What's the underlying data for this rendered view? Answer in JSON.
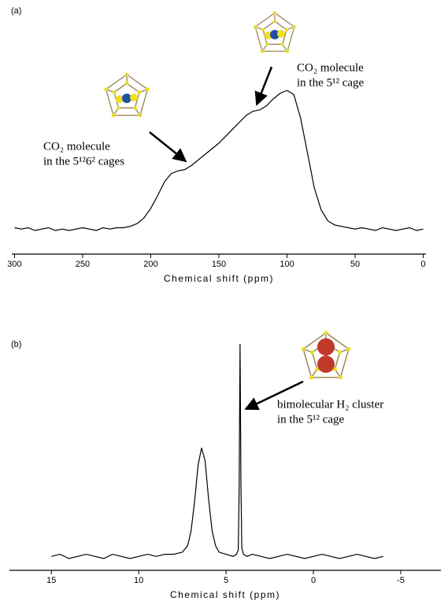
{
  "chart_data": [
    {
      "type": "line",
      "panel_label": "(a)",
      "xlabel": "Chemical shift (ppm)",
      "color": "#000000",
      "xlim": [
        302,
        -2
      ],
      "xticks": [
        300,
        250,
        200,
        150,
        100,
        50,
        0
      ],
      "x": [
        300,
        295,
        290,
        285,
        280,
        275,
        270,
        265,
        260,
        255,
        250,
        245,
        240,
        235,
        230,
        225,
        220,
        215,
        210,
        205,
        200,
        195,
        190,
        185,
        180,
        175,
        170,
        165,
        160,
        155,
        150,
        145,
        140,
        135,
        130,
        125,
        120,
        115,
        110,
        105,
        100,
        95,
        90,
        85,
        80,
        75,
        70,
        65,
        60,
        55,
        50,
        45,
        40,
        35,
        30,
        25,
        20,
        15,
        10,
        5,
        0
      ],
      "values": [
        1,
        0,
        1,
        -1,
        0,
        1,
        -1,
        0,
        -1,
        0,
        1,
        0,
        -1,
        1,
        0,
        1,
        1,
        2,
        4,
        8,
        15,
        24,
        34,
        40,
        42,
        43,
        46,
        50,
        54,
        58,
        62,
        67,
        72,
        77,
        82,
        85,
        86,
        89,
        94,
        98,
        100,
        97,
        80,
        55,
        30,
        14,
        6,
        3,
        2,
        1,
        0,
        1,
        0,
        -1,
        1,
        0,
        -1,
        0,
        1,
        -1,
        0
      ],
      "annotations": [
        [
          "CO₂ molecule",
          "in the 5¹²6² cages"
        ],
        [
          "CO₂ molecule",
          "in the 5¹² cage"
        ]
      ]
    },
    {
      "type": "line",
      "panel_label": "(b)",
      "xlabel": "Chemical shift (ppm)",
      "color": "#000000",
      "xlim": [
        17.4,
        -7.3
      ],
      "xticks": [
        15,
        10,
        5,
        0,
        -5
      ],
      "x": [
        15,
        14.5,
        14,
        13.5,
        13,
        12.5,
        12,
        11.5,
        11,
        10.5,
        10,
        9.5,
        9,
        8.5,
        8,
        7.5,
        7.2,
        7,
        6.8,
        6.6,
        6.4,
        6.2,
        6,
        5.8,
        5.6,
        5.4,
        5,
        4.6,
        4.4,
        4.3,
        4.25,
        4.2,
        4.15,
        4.1,
        4.0,
        3.8,
        3.5,
        3,
        2.5,
        2,
        1.5,
        1,
        0.5,
        0,
        -0.5,
        -1,
        -1.5,
        -2,
        -2.5,
        -3,
        -3.5,
        -4
      ],
      "values": [
        0,
        1,
        -1,
        0,
        1,
        0,
        -1,
        1,
        0,
        -1,
        0,
        1,
        0,
        1,
        1,
        2,
        5,
        12,
        26,
        43,
        51,
        45,
        27,
        12,
        5,
        2,
        1,
        0,
        1,
        3,
        30,
        100,
        35,
        4,
        1,
        0,
        1,
        0,
        -1,
        0,
        1,
        0,
        -1,
        0,
        1,
        0,
        -1,
        0,
        1,
        0,
        -1,
        0
      ],
      "annotations": [
        [
          "bimolecular H₂ cluster",
          "in the 5¹² cage"
        ]
      ]
    }
  ]
}
